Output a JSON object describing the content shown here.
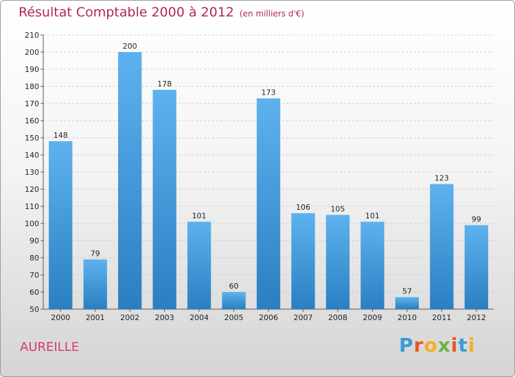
{
  "title": {
    "main": "Résultat Comptable 2000 à 2012",
    "sub": "(en milliers d'€)"
  },
  "commune": "AUREILLE",
  "brand": {
    "letters": [
      "P",
      "r",
      "o",
      "x",
      "i",
      "t",
      "i"
    ],
    "colors": [
      "#3a9bd8",
      "#e8572b",
      "#f2b01e",
      "#6db33f",
      "#e8572b",
      "#3a9bd8",
      "#f2b01e"
    ]
  },
  "colors": {
    "bar_light": "#5db2ee",
    "bar_dark": "#2a7fc2",
    "text": "#222222",
    "grid": "#cccccc",
    "title": "#b0275a"
  },
  "chart_data": {
    "type": "bar",
    "title": "Résultat Comptable 2000 à 2012",
    "subtitle": "(en milliers d'€)",
    "xlabel": "",
    "ylabel": "",
    "categories": [
      "2000",
      "2001",
      "2002",
      "2003",
      "2004",
      "2005",
      "2006",
      "2007",
      "2008",
      "2009",
      "2010",
      "2011",
      "2012"
    ],
    "values": [
      148,
      79,
      200,
      178,
      101,
      60,
      173,
      106,
      105,
      101,
      57,
      123,
      99
    ],
    "ylim": [
      50,
      210
    ],
    "yticks": [
      50,
      60,
      70,
      80,
      90,
      100,
      110,
      120,
      130,
      140,
      150,
      160,
      170,
      180,
      190,
      200,
      210
    ],
    "grid": true
  }
}
